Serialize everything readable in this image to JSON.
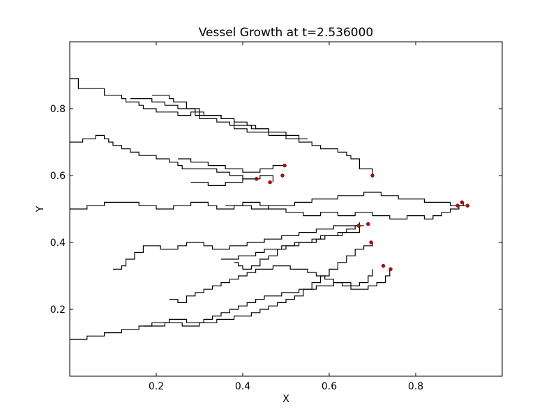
{
  "chart_data": {
    "type": "line",
    "title": "Vessel Growth at t=2.536000",
    "xlabel": "X",
    "ylabel": "Y",
    "xlim": [
      0.0,
      1.0
    ],
    "ylim": [
      0.0,
      1.0
    ],
    "xticks": [
      0.2,
      0.4,
      0.6,
      0.8
    ],
    "yticks": [
      0.2,
      0.4,
      0.6,
      0.8
    ],
    "xtick_labels": [
      "0.2",
      "0.4",
      "0.6",
      "0.8"
    ],
    "ytick_labels": [
      "0.2",
      "0.4",
      "0.6",
      "0.8"
    ],
    "grid": false,
    "line_color": "#000000",
    "tip_color": "#cc0000",
    "series": [
      {
        "x": [
          0.0,
          0.01,
          0.02,
          0.02,
          0.06,
          0.08,
          0.08,
          0.11,
          0.12,
          0.13,
          0.13,
          0.16,
          0.17,
          0.17,
          0.2,
          0.2,
          0.23,
          0.25,
          0.26,
          0.28,
          0.29,
          0.3,
          0.32,
          0.34,
          0.35,
          0.37,
          0.38,
          0.4,
          0.41,
          0.44,
          0.46,
          0.48,
          0.5,
          0.51,
          0.53,
          0.54,
          0.56,
          0.58,
          0.6,
          0.62,
          0.64,
          0.65,
          0.67,
          0.7
        ],
        "y": [
          0.89,
          0.89,
          0.86,
          0.86,
          0.86,
          0.85,
          0.84,
          0.84,
          0.83,
          0.82,
          0.82,
          0.81,
          0.81,
          0.8,
          0.8,
          0.79,
          0.79,
          0.78,
          0.78,
          0.79,
          0.78,
          0.77,
          0.77,
          0.76,
          0.76,
          0.75,
          0.74,
          0.74,
          0.73,
          0.73,
          0.72,
          0.72,
          0.71,
          0.71,
          0.7,
          0.7,
          0.69,
          0.68,
          0.68,
          0.67,
          0.66,
          0.65,
          0.62,
          0.6
        ]
      },
      {
        "x": [
          0.14,
          0.18,
          0.19,
          0.2,
          0.22,
          0.24,
          0.25,
          0.27,
          0.29,
          0.3,
          0.31,
          0.33,
          0.35,
          0.36,
          0.38,
          0.39,
          0.41,
          0.43,
          0.45,
          0.46,
          0.48,
          0.5,
          0.52,
          0.53,
          0.55
        ],
        "y": [
          0.83,
          0.83,
          0.82,
          0.82,
          0.81,
          0.81,
          0.8,
          0.8,
          0.79,
          0.79,
          0.78,
          0.78,
          0.77,
          0.77,
          0.76,
          0.76,
          0.75,
          0.74,
          0.74,
          0.73,
          0.73,
          0.72,
          0.72,
          0.71,
          0.71
        ]
      },
      {
        "x": [
          0.19,
          0.21,
          0.23,
          0.24,
          0.26,
          0.27,
          0.29,
          0.3,
          0.33,
          0.35,
          0.37,
          0.38,
          0.4,
          0.42,
          0.44,
          0.46
        ],
        "y": [
          0.84,
          0.84,
          0.83,
          0.82,
          0.82,
          0.8,
          0.8,
          0.78,
          0.78,
          0.77,
          0.77,
          0.75,
          0.75,
          0.74,
          0.74,
          0.73
        ]
      },
      {
        "x": [
          0.0,
          0.02,
          0.03,
          0.05,
          0.06,
          0.08,
          0.09,
          0.1,
          0.12,
          0.14,
          0.16,
          0.18,
          0.2,
          0.22,
          0.23,
          0.25,
          0.26,
          0.28,
          0.3,
          0.32,
          0.34,
          0.35,
          0.37,
          0.38,
          0.4,
          0.42,
          0.43
        ],
        "y": [
          0.7,
          0.7,
          0.71,
          0.71,
          0.72,
          0.71,
          0.7,
          0.69,
          0.68,
          0.67,
          0.66,
          0.66,
          0.65,
          0.65,
          0.64,
          0.63,
          0.62,
          0.62,
          0.62,
          0.62,
          0.61,
          0.61,
          0.6,
          0.6,
          0.59,
          0.59,
          0.59
        ]
      },
      {
        "x": [
          0.25,
          0.27,
          0.28,
          0.3,
          0.32,
          0.34,
          0.36,
          0.38,
          0.4,
          0.42,
          0.44,
          0.46,
          0.47,
          0.48,
          0.5
        ],
        "y": [
          0.65,
          0.65,
          0.64,
          0.64,
          0.63,
          0.63,
          0.62,
          0.62,
          0.61,
          0.61,
          0.62,
          0.62,
          0.63,
          0.63,
          0.63
        ]
      },
      {
        "x": [
          0.28,
          0.3,
          0.32,
          0.34,
          0.36,
          0.38,
          0.4,
          0.42,
          0.44,
          0.46,
          0.47
        ],
        "y": [
          0.58,
          0.58,
          0.57,
          0.57,
          0.58,
          0.58,
          0.59,
          0.59,
          0.6,
          0.6,
          0.58
        ]
      },
      {
        "x": [
          0.0,
          0.02,
          0.04,
          0.06,
          0.08,
          0.1,
          0.12,
          0.14,
          0.16,
          0.18,
          0.2,
          0.22,
          0.24,
          0.26,
          0.28,
          0.3,
          0.32,
          0.34,
          0.36,
          0.38,
          0.4,
          0.42,
          0.44,
          0.46,
          0.48,
          0.5,
          0.52,
          0.54,
          0.56,
          0.58,
          0.6,
          0.62,
          0.64,
          0.66,
          0.68,
          0.7,
          0.72,
          0.74,
          0.76,
          0.78,
          0.8,
          0.82,
          0.84,
          0.86,
          0.88,
          0.9,
          0.91
        ],
        "y": [
          0.5,
          0.5,
          0.51,
          0.51,
          0.52,
          0.52,
          0.52,
          0.52,
          0.51,
          0.51,
          0.5,
          0.5,
          0.51,
          0.51,
          0.52,
          0.52,
          0.51,
          0.5,
          0.5,
          0.51,
          0.51,
          0.5,
          0.5,
          0.51,
          0.51,
          0.51,
          0.52,
          0.52,
          0.53,
          0.53,
          0.53,
          0.54,
          0.54,
          0.54,
          0.55,
          0.55,
          0.54,
          0.54,
          0.53,
          0.53,
          0.53,
          0.52,
          0.52,
          0.52,
          0.51,
          0.51,
          0.52
        ]
      },
      {
        "x": [
          0.36,
          0.38,
          0.4,
          0.42,
          0.44,
          0.46,
          0.48,
          0.5,
          0.52,
          0.54,
          0.56,
          0.58,
          0.6,
          0.62,
          0.64,
          0.66,
          0.68,
          0.7,
          0.72,
          0.74,
          0.76,
          0.78,
          0.8,
          0.82,
          0.84,
          0.86,
          0.88,
          0.9,
          0.92
        ],
        "y": [
          0.51,
          0.51,
          0.52,
          0.52,
          0.51,
          0.5,
          0.5,
          0.49,
          0.49,
          0.48,
          0.48,
          0.49,
          0.49,
          0.48,
          0.48,
          0.49,
          0.49,
          0.48,
          0.48,
          0.47,
          0.47,
          0.48,
          0.48,
          0.47,
          0.48,
          0.49,
          0.5,
          0.51,
          0.51
        ]
      },
      {
        "x": [
          0.1,
          0.12,
          0.13,
          0.15,
          0.17,
          0.19,
          0.21,
          0.23,
          0.25,
          0.27,
          0.29,
          0.31,
          0.33,
          0.35,
          0.37,
          0.39,
          0.41,
          0.43,
          0.45,
          0.47,
          0.49,
          0.51,
          0.53,
          0.55,
          0.57,
          0.59,
          0.61,
          0.63,
          0.65,
          0.67
        ],
        "y": [
          0.32,
          0.33,
          0.35,
          0.37,
          0.39,
          0.39,
          0.38,
          0.38,
          0.39,
          0.4,
          0.4,
          0.39,
          0.38,
          0.38,
          0.39,
          0.39,
          0.4,
          0.4,
          0.41,
          0.41,
          0.42,
          0.42,
          0.43,
          0.43,
          0.44,
          0.44,
          0.45,
          0.45,
          0.45,
          0.44
        ]
      },
      {
        "x": [
          0.35,
          0.37,
          0.39,
          0.41,
          0.43,
          0.45,
          0.47,
          0.49,
          0.51,
          0.53,
          0.55,
          0.57,
          0.59,
          0.61,
          0.63,
          0.65,
          0.67,
          0.68
        ],
        "y": [
          0.35,
          0.35,
          0.36,
          0.36,
          0.37,
          0.38,
          0.38,
          0.39,
          0.39,
          0.4,
          0.4,
          0.41,
          0.42,
          0.42,
          0.43,
          0.43,
          0.45,
          0.45
        ]
      },
      {
        "x": [
          0.0,
          0.02,
          0.04,
          0.06,
          0.08,
          0.1,
          0.12,
          0.14,
          0.16,
          0.18,
          0.2,
          0.22,
          0.24,
          0.26,
          0.28,
          0.3,
          0.32,
          0.34,
          0.36,
          0.38,
          0.4,
          0.42,
          0.44,
          0.46,
          0.48,
          0.5,
          0.52,
          0.54,
          0.56,
          0.58,
          0.6,
          0.62,
          0.64,
          0.66,
          0.68,
          0.7
        ],
        "y": [
          0.11,
          0.11,
          0.12,
          0.12,
          0.13,
          0.13,
          0.14,
          0.14,
          0.15,
          0.15,
          0.15,
          0.16,
          0.16,
          0.15,
          0.15,
          0.16,
          0.16,
          0.17,
          0.17,
          0.18,
          0.18,
          0.19,
          0.2,
          0.21,
          0.22,
          0.23,
          0.24,
          0.26,
          0.28,
          0.3,
          0.32,
          0.34,
          0.36,
          0.38,
          0.39,
          0.4
        ]
      },
      {
        "x": [
          0.23,
          0.25,
          0.27,
          0.29,
          0.31,
          0.33,
          0.35,
          0.37,
          0.39,
          0.41,
          0.43,
          0.45,
          0.47,
          0.49,
          0.51,
          0.53,
          0.55,
          0.57,
          0.59,
          0.61,
          0.63,
          0.65,
          0.67,
          0.69,
          0.71,
          0.72,
          0.73,
          0.74
        ],
        "y": [
          0.23,
          0.22,
          0.24,
          0.25,
          0.26,
          0.27,
          0.28,
          0.29,
          0.3,
          0.31,
          0.32,
          0.32,
          0.33,
          0.33,
          0.32,
          0.32,
          0.31,
          0.3,
          0.29,
          0.28,
          0.27,
          0.26,
          0.26,
          0.27,
          0.28,
          0.28,
          0.3,
          0.32
        ]
      },
      {
        "x": [
          0.38,
          0.39,
          0.4,
          0.42,
          0.44,
          0.46,
          0.48,
          0.5,
          0.52,
          0.54,
          0.56,
          0.58,
          0.6,
          0.62,
          0.64,
          0.66,
          0.67
        ],
        "y": [
          0.34,
          0.33,
          0.32,
          0.33,
          0.35,
          0.36,
          0.38,
          0.39,
          0.4,
          0.4,
          0.41,
          0.42,
          0.42,
          0.43,
          0.44,
          0.45,
          0.46
        ]
      },
      {
        "x": [
          0.17,
          0.19,
          0.21,
          0.23,
          0.25,
          0.27,
          0.29,
          0.31,
          0.33,
          0.35,
          0.37,
          0.39,
          0.41,
          0.43,
          0.45,
          0.47,
          0.49,
          0.51,
          0.53,
          0.55,
          0.57,
          0.59,
          0.61,
          0.63,
          0.65,
          0.67,
          0.69,
          0.7
        ],
        "y": [
          0.15,
          0.16,
          0.16,
          0.17,
          0.17,
          0.16,
          0.16,
          0.17,
          0.18,
          0.19,
          0.2,
          0.21,
          0.22,
          0.23,
          0.24,
          0.24,
          0.25,
          0.25,
          0.26,
          0.26,
          0.27,
          0.27,
          0.28,
          0.28,
          0.27,
          0.28,
          0.3,
          0.32
        ]
      }
    ],
    "tips": {
      "x": [
        0.7,
        0.497,
        0.492,
        0.463,
        0.432,
        0.907,
        0.897,
        0.92,
        0.697,
        0.668,
        0.69,
        0.725,
        0.742
      ],
      "y": [
        0.6,
        0.63,
        0.6,
        0.58,
        0.59,
        0.52,
        0.51,
        0.51,
        0.4,
        0.45,
        0.455,
        0.33,
        0.32
      ]
    }
  }
}
